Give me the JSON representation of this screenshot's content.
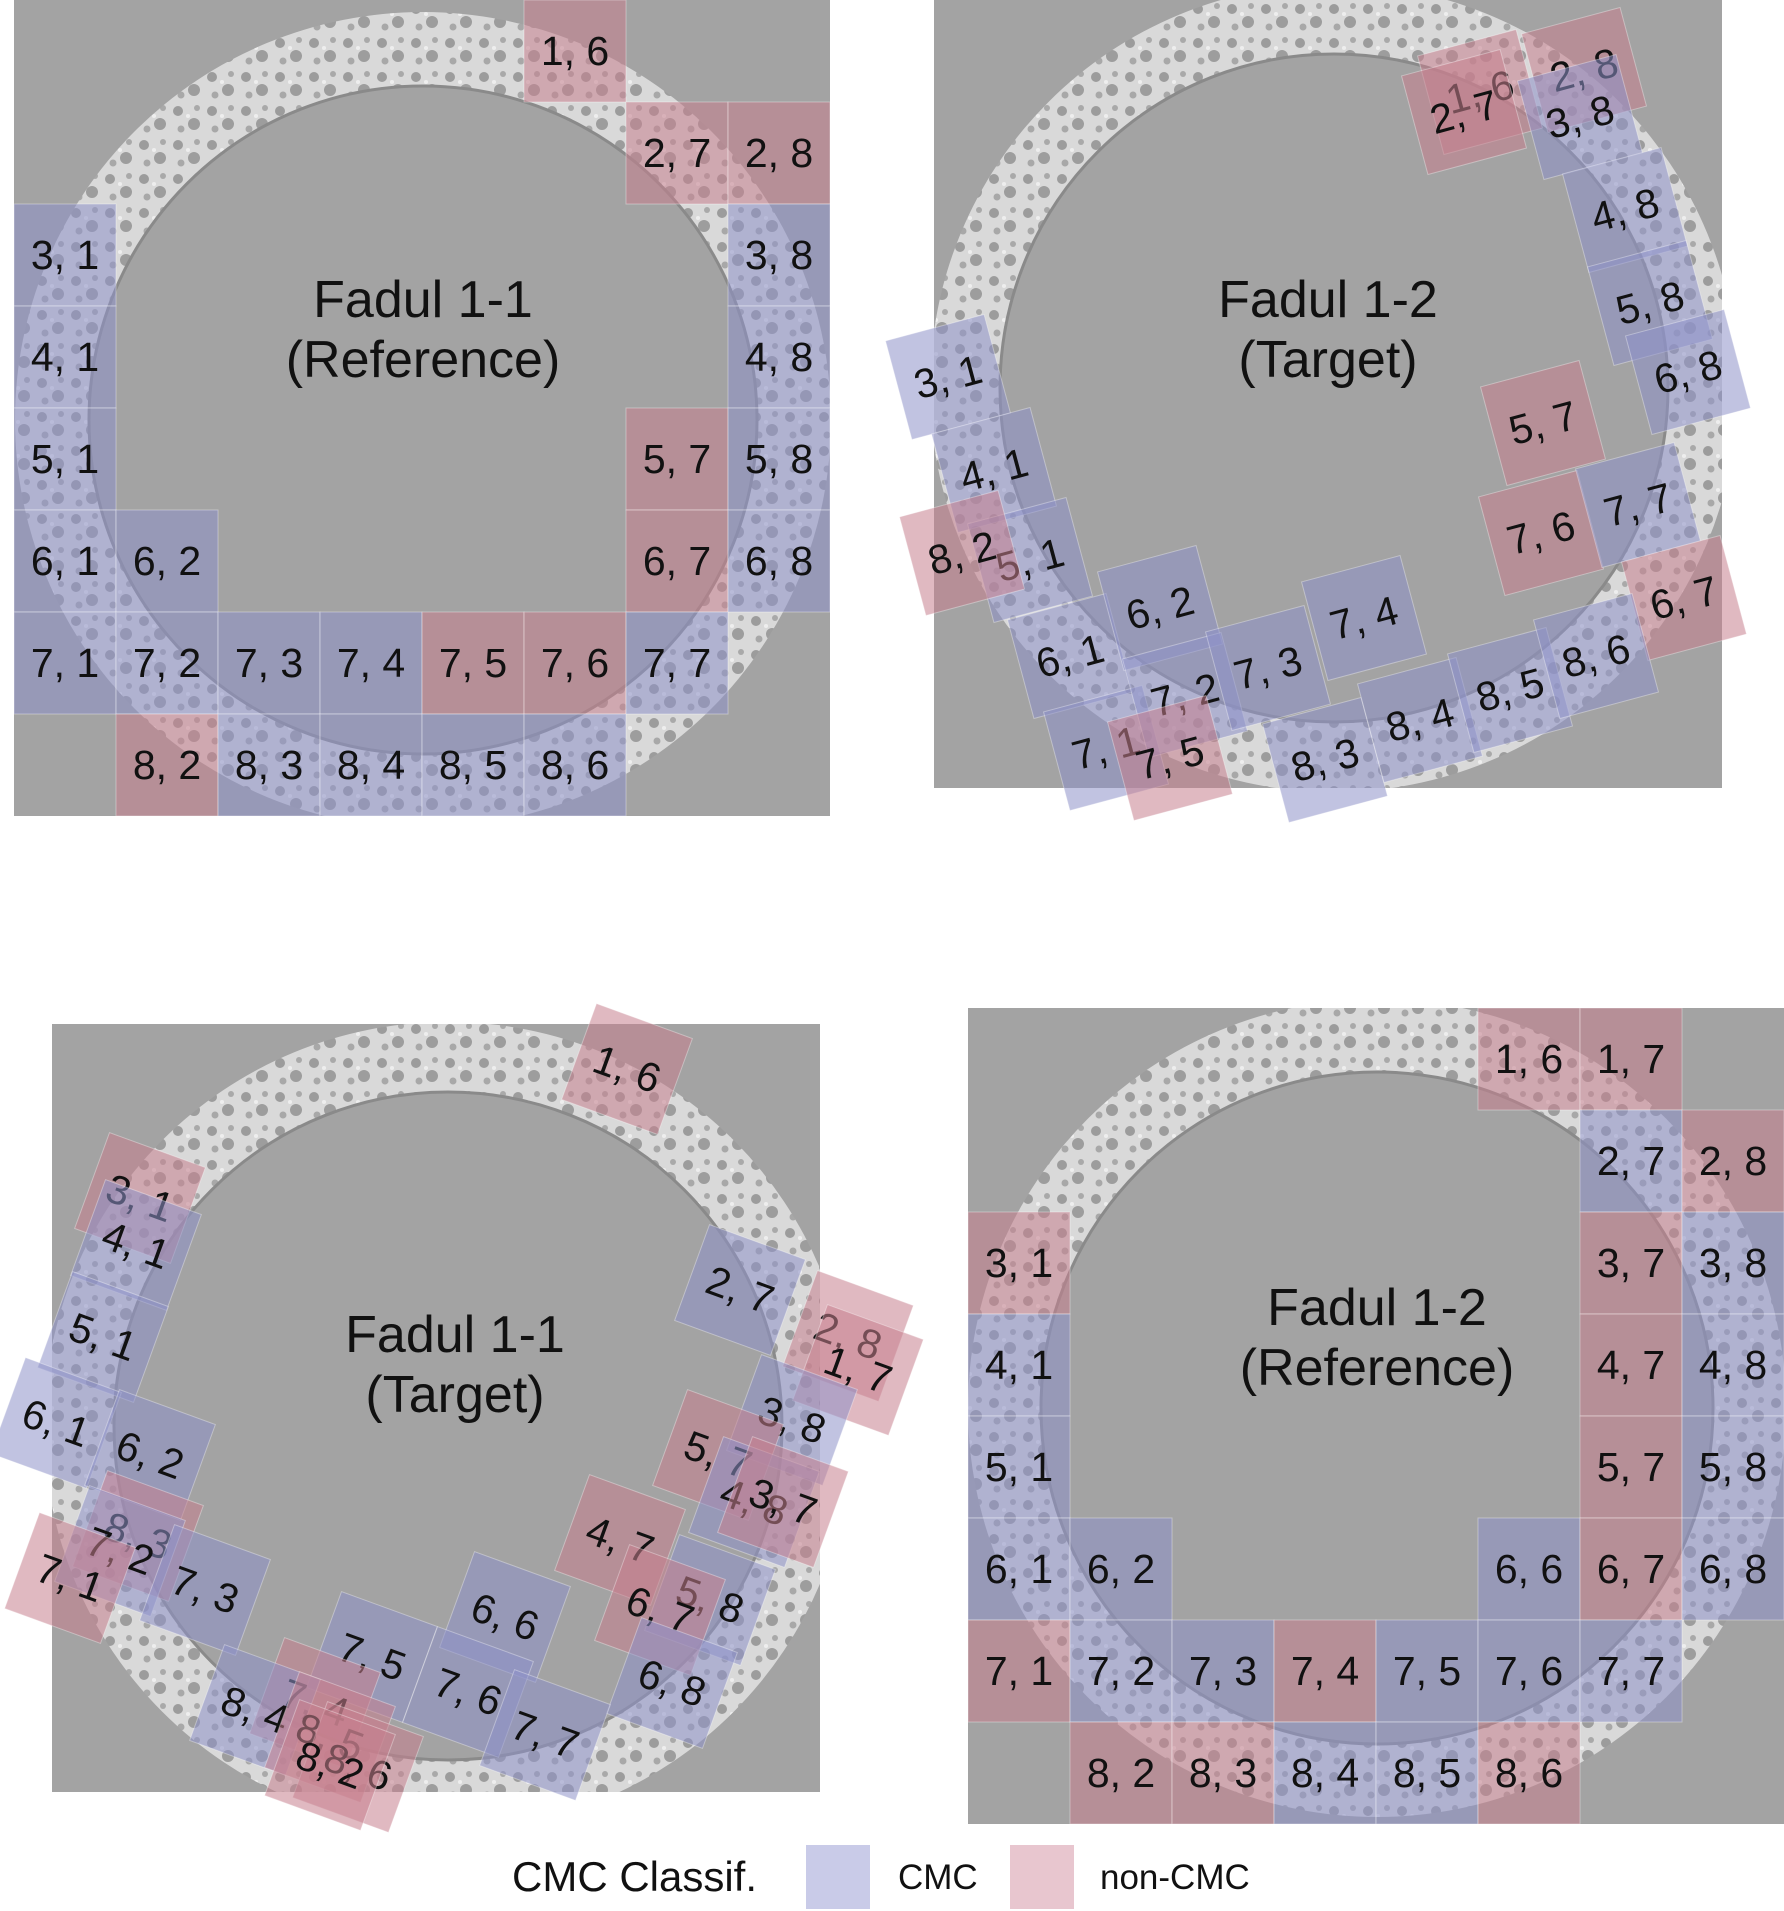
{
  "colors": {
    "background": "#a3a3a3",
    "ring": "#cfcfcf",
    "ring_texture": "#444444",
    "cmc": "#c9cbe8",
    "non_cmc": "#e8c6cf",
    "cmc_overlay": "#8e92c9",
    "non_cmc_overlay": "#c77f8e"
  },
  "legend": {
    "title": "CMC Classif.",
    "items": [
      {
        "key": "cmc",
        "label": "CMC"
      },
      {
        "key": "non_cmc",
        "label": "non-CMC"
      }
    ]
  },
  "panels": [
    {
      "id": "p1",
      "title_line1": "Fadul 1-1",
      "title_line2": "(Reference)",
      "grid": "aligned",
      "cells": [
        {
          "label": "1, 6",
          "class": "non_cmc"
        },
        {
          "label": "2, 7",
          "class": "non_cmc"
        },
        {
          "label": "2, 8",
          "class": "non_cmc"
        },
        {
          "label": "3, 1",
          "class": "cmc"
        },
        {
          "label": "3, 8",
          "class": "cmc"
        },
        {
          "label": "4, 1",
          "class": "cmc"
        },
        {
          "label": "4, 8",
          "class": "cmc"
        },
        {
          "label": "5, 1",
          "class": "cmc"
        },
        {
          "label": "5, 7",
          "class": "non_cmc"
        },
        {
          "label": "5, 8",
          "class": "cmc"
        },
        {
          "label": "6, 1",
          "class": "cmc"
        },
        {
          "label": "6, 2",
          "class": "cmc"
        },
        {
          "label": "6, 7",
          "class": "non_cmc"
        },
        {
          "label": "6, 8",
          "class": "cmc"
        },
        {
          "label": "7, 1",
          "class": "cmc"
        },
        {
          "label": "7, 2",
          "class": "cmc"
        },
        {
          "label": "7, 3",
          "class": "cmc"
        },
        {
          "label": "7, 4",
          "class": "cmc"
        },
        {
          "label": "7, 5",
          "class": "non_cmc"
        },
        {
          "label": "7, 6",
          "class": "non_cmc"
        },
        {
          "label": "7, 7",
          "class": "cmc"
        },
        {
          "label": "8, 2",
          "class": "non_cmc"
        },
        {
          "label": "8, 3",
          "class": "cmc"
        },
        {
          "label": "8, 4",
          "class": "cmc"
        },
        {
          "label": "8, 5",
          "class": "cmc"
        },
        {
          "label": "8, 6",
          "class": "cmc"
        }
      ]
    },
    {
      "id": "p2",
      "title_line1": "Fadul 1-2",
      "title_line2": "(Target)",
      "grid": "rotated",
      "cells": [
        {
          "label": "1, 6",
          "class": "non_cmc"
        },
        {
          "label": "2, 7",
          "class": "non_cmc"
        },
        {
          "label": "2, 8",
          "class": "non_cmc"
        },
        {
          "label": "3, 8",
          "class": "cmc"
        },
        {
          "label": "4, 8",
          "class": "cmc"
        },
        {
          "label": "5, 8",
          "class": "cmc"
        },
        {
          "label": "6, 8",
          "class": "cmc"
        },
        {
          "label": "3, 1",
          "class": "cmc"
        },
        {
          "label": "4, 1",
          "class": "cmc"
        },
        {
          "label": "5, 1",
          "class": "cmc"
        },
        {
          "label": "8, 2",
          "class": "non_cmc"
        },
        {
          "label": "5, 7",
          "class": "non_cmc"
        },
        {
          "label": "7, 6",
          "class": "non_cmc"
        },
        {
          "label": "7, 7",
          "class": "cmc"
        },
        {
          "label": "6, 7",
          "class": "non_cmc"
        },
        {
          "label": "6, 1",
          "class": "cmc"
        },
        {
          "label": "6, 2",
          "class": "cmc"
        },
        {
          "label": "7, 1",
          "class": "cmc"
        },
        {
          "label": "7, 2",
          "class": "cmc"
        },
        {
          "label": "7, 3",
          "class": "cmc"
        },
        {
          "label": "7, 4",
          "class": "cmc"
        },
        {
          "label": "7, 5",
          "class": "non_cmc"
        },
        {
          "label": "8, 3",
          "class": "cmc"
        },
        {
          "label": "8, 4",
          "class": "cmc"
        },
        {
          "label": "8, 5",
          "class": "cmc"
        },
        {
          "label": "8, 6",
          "class": "cmc"
        }
      ]
    },
    {
      "id": "p3",
      "title_line1": "Fadul 1-1",
      "title_line2": "(Target)",
      "grid": "rotated",
      "cells": [
        {
          "label": "1, 6",
          "class": "non_cmc"
        },
        {
          "label": "3, 1",
          "class": "non_cmc"
        },
        {
          "label": "4, 1",
          "class": "cmc"
        },
        {
          "label": "5, 1",
          "class": "cmc"
        },
        {
          "label": "6, 1",
          "class": "cmc"
        },
        {
          "label": "6, 2",
          "class": "cmc"
        },
        {
          "label": "8, 3",
          "class": "non_cmc"
        },
        {
          "label": "7, 2",
          "class": "cmc"
        },
        {
          "label": "7, 1",
          "class": "non_cmc"
        },
        {
          "label": "7, 3",
          "class": "cmc"
        },
        {
          "label": "2, 7",
          "class": "cmc"
        },
        {
          "label": "2, 8",
          "class": "non_cmc"
        },
        {
          "label": "1, 7",
          "class": "non_cmc"
        },
        {
          "label": "3, 8",
          "class": "cmc"
        },
        {
          "label": "5, 7",
          "class": "non_cmc"
        },
        {
          "label": "4, 8",
          "class": "cmc"
        },
        {
          "label": "3, 7",
          "class": "non_cmc"
        },
        {
          "label": "4, 7",
          "class": "non_cmc"
        },
        {
          "label": "5, 8",
          "class": "cmc"
        },
        {
          "label": "6, 7",
          "class": "non_cmc"
        },
        {
          "label": "6, 8",
          "class": "cmc"
        },
        {
          "label": "6, 6",
          "class": "cmc"
        },
        {
          "label": "7, 5",
          "class": "cmc"
        },
        {
          "label": "7, 6",
          "class": "cmc"
        },
        {
          "label": "7, 7",
          "class": "cmc"
        },
        {
          "label": "7, 4",
          "class": "non_cmc"
        },
        {
          "label": "8, 4",
          "class": "cmc"
        },
        {
          "label": "8, 5",
          "class": "non_cmc"
        },
        {
          "label": "8, 6",
          "class": "non_cmc"
        },
        {
          "label": "8, 2",
          "class": "non_cmc"
        }
      ]
    },
    {
      "id": "p4",
      "title_line1": "Fadul 1-2",
      "title_line2": "(Reference)",
      "grid": "aligned",
      "cells": [
        {
          "label": "1, 6",
          "class": "non_cmc"
        },
        {
          "label": "1, 7",
          "class": "non_cmc"
        },
        {
          "label": "2, 7",
          "class": "cmc"
        },
        {
          "label": "2, 8",
          "class": "non_cmc"
        },
        {
          "label": "3, 1",
          "class": "non_cmc"
        },
        {
          "label": "3, 7",
          "class": "non_cmc"
        },
        {
          "label": "3, 8",
          "class": "cmc"
        },
        {
          "label": "4, 1",
          "class": "cmc"
        },
        {
          "label": "4, 7",
          "class": "non_cmc"
        },
        {
          "label": "4, 8",
          "class": "cmc"
        },
        {
          "label": "5, 1",
          "class": "cmc"
        },
        {
          "label": "5, 7",
          "class": "non_cmc"
        },
        {
          "label": "5, 8",
          "class": "cmc"
        },
        {
          "label": "6, 1",
          "class": "cmc"
        },
        {
          "label": "6, 2",
          "class": "cmc"
        },
        {
          "label": "6, 6",
          "class": "cmc"
        },
        {
          "label": "6, 7",
          "class": "non_cmc"
        },
        {
          "label": "6, 8",
          "class": "cmc"
        },
        {
          "label": "7, 1",
          "class": "non_cmc"
        },
        {
          "label": "7, 2",
          "class": "cmc"
        },
        {
          "label": "7, 3",
          "class": "cmc"
        },
        {
          "label": "7, 4",
          "class": "non_cmc"
        },
        {
          "label": "7, 5",
          "class": "cmc"
        },
        {
          "label": "7, 6",
          "class": "cmc"
        },
        {
          "label": "7, 7",
          "class": "cmc"
        },
        {
          "label": "8, 2",
          "class": "non_cmc"
        },
        {
          "label": "8, 3",
          "class": "non_cmc"
        },
        {
          "label": "8, 4",
          "class": "cmc"
        },
        {
          "label": "8, 5",
          "class": "cmc"
        },
        {
          "label": "8, 6",
          "class": "non_cmc"
        }
      ]
    }
  ]
}
